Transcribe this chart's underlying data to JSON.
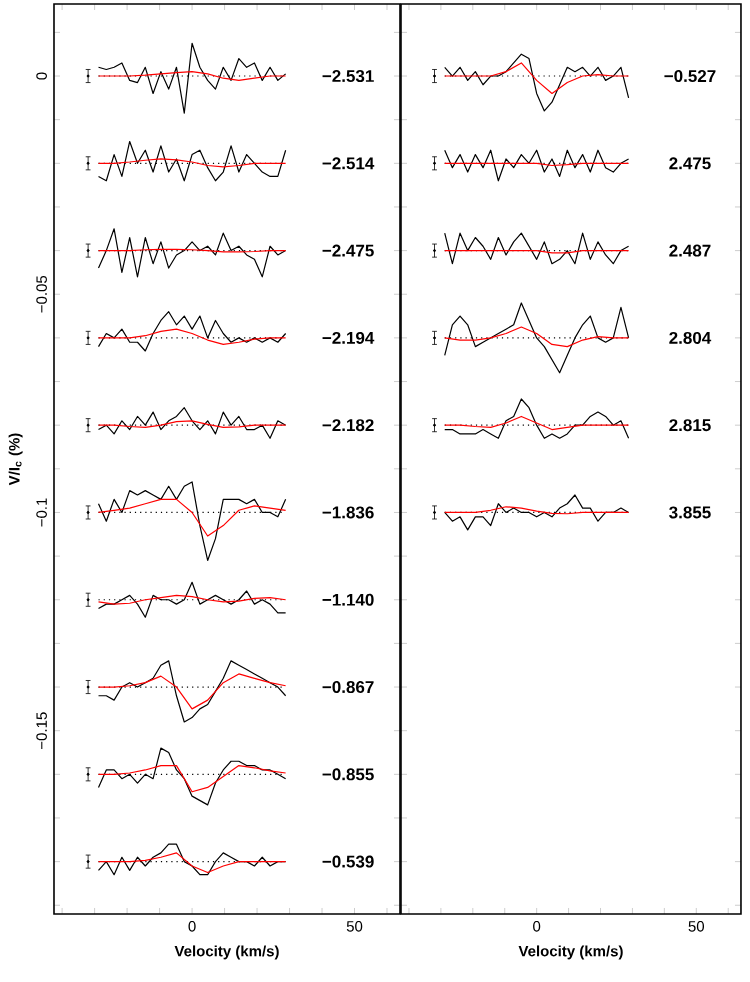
{
  "chart_data": [
    {
      "type": "line",
      "xlabel": "Velocity (km/s)",
      "ylabel": "V/I$_{c}$ (%)",
      "xlim": [
        -42.5,
        64
      ],
      "ylim": [
        -0.192,
        0.0165
      ],
      "xticks": [
        {
          "value": -40,
          "label": null
        },
        {
          "value": -30,
          "label": null
        },
        {
          "value": -20,
          "label": null
        },
        {
          "value": -10,
          "label": null
        },
        0,
        {
          "value": 10,
          "label": null
        },
        {
          "value": 20,
          "label": null
        },
        {
          "value": 30,
          "label": null
        },
        {
          "value": 40,
          "label": null
        },
        50,
        {
          "value": 60,
          "label": null
        }
      ],
      "yticks": [
        {
          "value": 0.01,
          "label": null
        },
        0,
        {
          "value": -0.01,
          "label": null
        },
        {
          "value": -0.02,
          "label": null
        },
        {
          "value": -0.03,
          "label": null
        },
        {
          "value": -0.04,
          "label": null
        },
        {
          "value": -0.05,
          "label": "−0.05"
        },
        {
          "value": -0.06,
          "label": null
        },
        {
          "value": -0.07,
          "label": null
        },
        {
          "value": -0.08,
          "label": null
        },
        {
          "value": -0.09,
          "label": null
        },
        {
          "value": -0.1,
          "label": "−0.1"
        },
        {
          "value": -0.11,
          "label": null
        },
        {
          "value": -0.12,
          "label": null
        },
        {
          "value": -0.13,
          "label": null
        },
        {
          "value": -0.14,
          "label": null
        },
        {
          "value": -0.15,
          "label": "−0.15"
        },
        {
          "value": -0.16,
          "label": null
        },
        {
          "value": -0.17,
          "label": null
        },
        {
          "value": -0.18,
          "label": null
        },
        {
          "value": -0.19,
          "label": null
        }
      ],
      "legend": false,
      "grid": false,
      "marker": "none",
      "line_style": "solid",
      "x": [
        -28.8,
        -26.4,
        -24,
        -21.6,
        -19.2,
        -16.8,
        -14.4,
        -12,
        -9.6,
        -7.2,
        -4.8,
        -2.4,
        0,
        2.4,
        4.8,
        7.2,
        9.6,
        12,
        14.4,
        16.8,
        19.2,
        21.6,
        24,
        26.4,
        28.8
      ],
      "series": [
        {
          "color": "#000000",
          "values": [
            0.002,
            0.0015,
            0.002,
            0.003,
            -0.001,
            -0.0015,
            0.002,
            -0.004,
            0.001,
            -0.003,
            0.002,
            -0.0085,
            0.0075,
            0.002,
            -0.001,
            -0.003,
            0.002,
            -0.001,
            0.004,
            0.002,
            0.003,
            -0.001,
            0.002,
            -0.001,
            0.0005
          ]
        },
        {
          "color": "#ff0000",
          "x": [
            -28.8,
            -24,
            -19.2,
            -14.4,
            -9.6,
            -4.8,
            0,
            4.8,
            9.6,
            14.4,
            19.2,
            24,
            28.8
          ],
          "values": [
            0,
            0,
            0,
            0.0002,
            0.0005,
            0.0008,
            0.001,
            0.0005,
            -0.0005,
            -0.001,
            -0.0005,
            0,
            0
          ]
        },
        {
          "color": "#000000",
          "values": [
            -0.023,
            -0.024,
            -0.018,
            -0.023,
            -0.015,
            -0.02,
            -0.017,
            -0.022,
            -0.016,
            -0.022,
            -0.019,
            -0.024,
            -0.018,
            -0.017,
            -0.021,
            -0.024,
            -0.022,
            -0.016,
            -0.022,
            -0.018,
            -0.02,
            -0.022,
            -0.023,
            -0.023,
            -0.017
          ]
        },
        {
          "color": "#ff0000",
          "x": [
            -28.8,
            -24,
            -19.2,
            -14.4,
            -9.6,
            -4.8,
            0,
            4.8,
            9.6,
            14.4,
            19.2,
            24,
            28.8
          ],
          "values": [
            -0.02,
            -0.02,
            -0.0197,
            -0.0193,
            -0.019,
            -0.0192,
            -0.0197,
            -0.0205,
            -0.0208,
            -0.0205,
            -0.02,
            -0.02,
            -0.02
          ]
        },
        {
          "color": "#000000",
          "values": [
            -0.044,
            -0.04,
            -0.035,
            -0.045,
            -0.037,
            -0.046,
            -0.037,
            -0.043,
            -0.038,
            -0.044,
            -0.041,
            -0.04,
            -0.038,
            -0.04,
            -0.039,
            -0.041,
            -0.036,
            -0.04,
            -0.039,
            -0.041,
            -0.042,
            -0.046,
            -0.039,
            -0.041,
            -0.04
          ]
        },
        {
          "color": "#ff0000",
          "x": [
            -28.8,
            -24,
            -19.2,
            -14.4,
            -9.6,
            -4.8,
            0,
            4.8,
            9.6,
            14.4,
            19.2,
            24,
            28.8
          ],
          "values": [
            -0.04,
            -0.04,
            -0.04,
            -0.0398,
            -0.0397,
            -0.0397,
            -0.0398,
            -0.04,
            -0.0403,
            -0.0403,
            -0.0402,
            -0.04,
            -0.04
          ]
        },
        {
          "color": "#000000",
          "values": [
            -0.062,
            -0.059,
            -0.06,
            -0.058,
            -0.061,
            -0.061,
            -0.063,
            -0.059,
            -0.056,
            -0.054,
            -0.057,
            -0.055,
            -0.058,
            -0.055,
            -0.06,
            -0.056,
            -0.059,
            -0.061,
            -0.06,
            -0.061,
            -0.06,
            -0.061,
            -0.06,
            -0.061,
            -0.059
          ]
        },
        {
          "color": "#ff0000",
          "x": [
            -28.8,
            -24,
            -19.2,
            -14.4,
            -9.6,
            -4.8,
            0,
            4.8,
            9.6,
            14.4,
            19.2,
            24,
            28.8
          ],
          "values": [
            -0.06,
            -0.06,
            -0.06,
            -0.0595,
            -0.0585,
            -0.058,
            -0.059,
            -0.0605,
            -0.0615,
            -0.061,
            -0.0603,
            -0.06,
            -0.06
          ]
        },
        {
          "color": "#000000",
          "values": [
            -0.081,
            -0.08,
            -0.082,
            -0.079,
            -0.081,
            -0.078,
            -0.08,
            -0.077,
            -0.081,
            -0.079,
            -0.078,
            -0.076,
            -0.079,
            -0.081,
            -0.079,
            -0.082,
            -0.077,
            -0.08,
            -0.078,
            -0.081,
            -0.081,
            -0.08,
            -0.083,
            -0.079,
            -0.08
          ]
        },
        {
          "color": "#ff0000",
          "x": [
            -28.8,
            -24,
            -19.2,
            -14.4,
            -9.6,
            -4.8,
            0,
            4.8,
            9.6,
            14.4,
            19.2,
            24,
            28.8
          ],
          "values": [
            -0.08,
            -0.08,
            -0.0803,
            -0.0805,
            -0.08,
            -0.0792,
            -0.079,
            -0.0798,
            -0.0805,
            -0.0804,
            -0.08,
            -0.08,
            -0.08
          ]
        },
        {
          "color": "#000000",
          "values": [
            -0.098,
            -0.102,
            -0.097,
            -0.1,
            -0.095,
            -0.096,
            -0.095,
            -0.096,
            -0.097,
            -0.094,
            -0.097,
            -0.094,
            -0.093,
            -0.103,
            -0.111,
            -0.106,
            -0.097,
            -0.097,
            -0.097,
            -0.098,
            -0.097,
            -0.1,
            -0.1,
            -0.101,
            -0.097
          ]
        },
        {
          "color": "#ff0000",
          "x": [
            -28.8,
            -24,
            -19.2,
            -14.4,
            -9.6,
            -4.8,
            0,
            4.8,
            9.6,
            14.4,
            19.2,
            24,
            28.8
          ],
          "values": [
            -0.1,
            -0.0995,
            -0.099,
            -0.098,
            -0.097,
            -0.097,
            -0.1,
            -0.1054,
            -0.103,
            -0.0995,
            -0.0985,
            -0.099,
            -0.0995
          ]
        },
        {
          "color": "#000000",
          "values": [
            -0.122,
            -0.121,
            -0.121,
            -0.12,
            -0.119,
            -0.121,
            -0.124,
            -0.119,
            -0.12,
            -0.12,
            -0.121,
            -0.12,
            -0.116,
            -0.121,
            -0.12,
            -0.119,
            -0.12,
            -0.121,
            -0.12,
            -0.118,
            -0.121,
            -0.12,
            -0.121,
            -0.123,
            -0.123
          ]
        },
        {
          "color": "#ff0000",
          "x": [
            -28.8,
            -24,
            -19.2,
            -14.4,
            -9.6,
            -4.8,
            0,
            4.8,
            9.6,
            14.4,
            19.2,
            24,
            28.8
          ],
          "values": [
            -0.1205,
            -0.121,
            -0.1208,
            -0.12,
            -0.1195,
            -0.119,
            -0.1193,
            -0.12,
            -0.1205,
            -0.1203,
            -0.1197,
            -0.1195,
            -0.12
          ]
        },
        {
          "color": "#000000",
          "values": [
            -0.142,
            -0.142,
            -0.143,
            -0.14,
            -0.139,
            -0.14,
            -0.139,
            -0.138,
            -0.135,
            -0.134,
            -0.142,
            -0.148,
            -0.147,
            -0.145,
            -0.144,
            -0.141,
            -0.138,
            -0.134,
            -0.135,
            -0.136,
            -0.137,
            -0.138,
            -0.139,
            -0.14,
            -0.142
          ]
        },
        {
          "color": "#ff0000",
          "x": [
            -28.8,
            -24,
            -19.2,
            -14.4,
            -9.6,
            -4.8,
            0,
            4.8,
            9.6,
            14.4,
            19.2,
            24,
            28.8
          ],
          "values": [
            -0.14,
            -0.14,
            -0.1397,
            -0.139,
            -0.1375,
            -0.14,
            -0.145,
            -0.143,
            -0.139,
            -0.137,
            -0.138,
            -0.139,
            -0.1397
          ]
        },
        {
          "color": "#000000",
          "values": [
            -0.163,
            -0.159,
            -0.159,
            -0.161,
            -0.16,
            -0.162,
            -0.16,
            -0.161,
            -0.154,
            -0.155,
            -0.159,
            -0.161,
            -0.165,
            -0.166,
            -0.167,
            -0.162,
            -0.159,
            -0.157,
            -0.157,
            -0.158,
            -0.158,
            -0.159,
            -0.159,
            -0.16,
            -0.161
          ]
        },
        {
          "color": "#ff0000",
          "x": [
            -28.8,
            -24,
            -19.2,
            -14.4,
            -9.6,
            -4.8,
            0,
            4.8,
            9.6,
            14.4,
            19.2,
            24,
            28.8
          ],
          "values": [
            -0.16,
            -0.16,
            -0.1597,
            -0.159,
            -0.158,
            -0.158,
            -0.164,
            -0.163,
            -0.1605,
            -0.158,
            -0.1585,
            -0.1592,
            -0.1597
          ]
        },
        {
          "color": "#000000",
          "values": [
            -0.182,
            -0.18,
            -0.183,
            -0.179,
            -0.182,
            -0.179,
            -0.181,
            -0.179,
            -0.178,
            -0.176,
            -0.176,
            -0.18,
            -0.181,
            -0.183,
            -0.183,
            -0.18,
            -0.178,
            -0.179,
            -0.18,
            -0.18,
            -0.181,
            -0.179,
            -0.181,
            -0.18,
            -0.18
          ]
        },
        {
          "color": "#ff0000",
          "x": [
            -28.8,
            -24,
            -19.2,
            -14.4,
            -9.6,
            -4.8,
            0,
            4.8,
            9.6,
            14.4,
            19.2,
            24,
            28.8
          ],
          "values": [
            -0.18,
            -0.18,
            -0.18,
            -0.1797,
            -0.179,
            -0.178,
            -0.181,
            -0.1825,
            -0.181,
            -0.18,
            -0.18,
            -0.18,
            -0.18
          ]
        },
        {
          "type": "scatter",
          "color": "#000000",
          "x": [
            -32,
            -32,
            -32,
            -32,
            -32,
            -32,
            -32,
            -32,
            -32,
            -32
          ],
          "values": [
            0,
            -0.02,
            -0.04,
            -0.06,
            -0.08,
            -0.1,
            -0.12,
            -0.14,
            -0.16,
            -0.18
          ],
          "errors": [
            0.0015,
            0.0015,
            0.0015,
            0.0015,
            0.0015,
            0.0015,
            0.0015,
            0.0015,
            0.0015,
            0.0015
          ]
        }
      ],
      "ref_lines": [
        {
          "axis": "y",
          "value": 0,
          "line_style": "dotted",
          "color": "#000000"
        },
        {
          "axis": "y",
          "value": -0.02,
          "line_style": "dotted",
          "color": "#000000"
        },
        {
          "axis": "y",
          "value": -0.04,
          "line_style": "dotted",
          "color": "#000000"
        },
        {
          "axis": "y",
          "value": -0.06,
          "line_style": "dotted",
          "color": "#000000"
        },
        {
          "axis": "y",
          "value": -0.08,
          "line_style": "dotted",
          "color": "#000000"
        },
        {
          "axis": "y",
          "value": -0.1,
          "line_style": "dotted",
          "color": "#000000"
        },
        {
          "axis": "y",
          "value": -0.12,
          "line_style": "dotted",
          "color": "#000000"
        },
        {
          "axis": "y",
          "value": -0.14,
          "line_style": "dotted",
          "color": "#000000"
        },
        {
          "axis": "y",
          "value": -0.16,
          "line_style": "dotted",
          "color": "#000000"
        },
        {
          "axis": "y",
          "value": -0.18,
          "line_style": "dotted",
          "color": "#000000"
        }
      ],
      "annotations": [
        "−2.531",
        "−2.514",
        "−2.475",
        "−2.194",
        "−2.182",
        "−1.836",
        "−1.140",
        "−0.867",
        "−0.855",
        "−0.539"
      ]
    },
    {
      "type": "line",
      "xlabel": "Velocity (km/s)",
      "xlim": [
        -42.5,
        64
      ],
      "ylim": [
        -0.192,
        0.0165
      ],
      "tick_labels": "x",
      "xticks": [
        {
          "value": -40,
          "label": null
        },
        {
          "value": -30,
          "label": null
        },
        {
          "value": -20,
          "label": null
        },
        {
          "value": -10,
          "label": null
        },
        0,
        {
          "value": 10,
          "label": null
        },
        {
          "value": 20,
          "label": null
        },
        {
          "value": 30,
          "label": null
        },
        {
          "value": 40,
          "label": null
        },
        50,
        {
          "value": 60,
          "label": null
        }
      ],
      "yticks": [
        {
          "value": 0.01,
          "label": null
        },
        {
          "value": 0,
          "label": null
        },
        {
          "value": -0.01,
          "label": null
        },
        {
          "value": -0.02,
          "label": null
        },
        {
          "value": -0.03,
          "label": null
        },
        {
          "value": -0.04,
          "label": null
        },
        {
          "value": -0.05,
          "label": null
        },
        {
          "value": -0.06,
          "label": null
        },
        {
          "value": -0.07,
          "label": null
        },
        {
          "value": -0.08,
          "label": null
        },
        {
          "value": -0.09,
          "label": null
        },
        {
          "value": -0.1,
          "label": null
        },
        {
          "value": -0.11,
          "label": null
        },
        {
          "value": -0.12,
          "label": null
        },
        {
          "value": -0.13,
          "label": null
        },
        {
          "value": -0.14,
          "label": null
        },
        {
          "value": -0.15,
          "label": null
        },
        {
          "value": -0.16,
          "label": null
        },
        {
          "value": -0.17,
          "label": null
        },
        {
          "value": -0.18,
          "label": null
        },
        {
          "value": -0.19,
          "label": null
        }
      ],
      "legend": false,
      "grid": false,
      "marker": "none",
      "line_style": "solid",
      "x": [
        -28.8,
        -26.4,
        -24,
        -21.6,
        -19.2,
        -16.8,
        -14.4,
        -12,
        -9.6,
        -7.2,
        -4.8,
        -2.4,
        0,
        2.4,
        4.8,
        7.2,
        9.6,
        12,
        14.4,
        16.8,
        19.2,
        21.6,
        24,
        26.4,
        28.8
      ],
      "series": [
        {
          "color": "#000000",
          "values": [
            0.002,
            0,
            0.002,
            -0.001,
            0.001,
            -0.002,
            0,
            0,
            0.001,
            0.003,
            0.005,
            0.004,
            -0.004,
            -0.008,
            -0.006,
            -0.002,
            0.002,
            0.001,
            0.002,
            0,
            0.002,
            -0.001,
            0,
            0.002,
            -0.005
          ]
        },
        {
          "color": "#ff0000",
          "x": [
            -28.8,
            -24,
            -19.2,
            -14.4,
            -9.6,
            -4.8,
            0,
            4.8,
            9.6,
            14.4,
            19.2,
            24,
            28.8
          ],
          "values": [
            0,
            0,
            0,
            0,
            0.001,
            0.003,
            -0.001,
            -0.004,
            -0.0015,
            0,
            0.0003,
            0,
            0
          ]
        },
        {
          "color": "#000000",
          "values": [
            -0.017,
            -0.021,
            -0.018,
            -0.022,
            -0.018,
            -0.021,
            -0.017,
            -0.024,
            -0.019,
            -0.021,
            -0.018,
            -0.02,
            -0.017,
            -0.022,
            -0.019,
            -0.023,
            -0.017,
            -0.021,
            -0.018,
            -0.022,
            -0.017,
            -0.021,
            -0.022,
            -0.02,
            -0.019
          ]
        },
        {
          "color": "#ff0000",
          "x": [
            -28.8,
            -24,
            -19.2,
            -14.4,
            -9.6,
            -4.8,
            0,
            4.8,
            9.6,
            14.4,
            19.2,
            24,
            28.8
          ],
          "values": [
            -0.02,
            -0.02,
            -0.02,
            -0.02,
            -0.02,
            -0.02,
            -0.02,
            -0.0205,
            -0.0203,
            -0.02,
            -0.02,
            -0.02,
            -0.02
          ]
        },
        {
          "color": "#000000",
          "values": [
            -0.036,
            -0.043,
            -0.036,
            -0.04,
            -0.037,
            -0.039,
            -0.042,
            -0.037,
            -0.041,
            -0.038,
            -0.036,
            -0.039,
            -0.042,
            -0.038,
            -0.043,
            -0.042,
            -0.04,
            -0.043,
            -0.036,
            -0.042,
            -0.038,
            -0.041,
            -0.043,
            -0.04,
            -0.039
          ]
        },
        {
          "color": "#ff0000",
          "x": [
            -28.8,
            -24,
            -19.2,
            -14.4,
            -9.6,
            -4.8,
            0,
            4.8,
            9.6,
            14.4,
            19.2,
            24,
            28.8
          ],
          "values": [
            -0.04,
            -0.04,
            -0.04,
            -0.04,
            -0.04,
            -0.04,
            -0.04,
            -0.0405,
            -0.0405,
            -0.04,
            -0.04,
            -0.04,
            -0.04
          ]
        },
        {
          "color": "#000000",
          "values": [
            -0.064,
            -0.057,
            -0.055,
            -0.057,
            -0.062,
            -0.061,
            -0.06,
            -0.059,
            -0.058,
            -0.057,
            -0.052,
            -0.056,
            -0.06,
            -0.062,
            -0.065,
            -0.068,
            -0.064,
            -0.06,
            -0.057,
            -0.055,
            -0.06,
            -0.061,
            -0.06,
            -0.053,
            -0.06
          ]
        },
        {
          "color": "#ff0000",
          "x": [
            -28.8,
            -24,
            -19.2,
            -14.4,
            -9.6,
            -4.8,
            0,
            4.8,
            9.6,
            14.4,
            19.2,
            24,
            28.8
          ],
          "values": [
            -0.06,
            -0.0605,
            -0.0605,
            -0.06,
            -0.059,
            -0.0575,
            -0.059,
            -0.0615,
            -0.062,
            -0.0605,
            -0.0597,
            -0.06,
            -0.06
          ]
        },
        {
          "color": "#000000",
          "values": [
            -0.081,
            -0.081,
            -0.082,
            -0.082,
            -0.082,
            -0.081,
            -0.082,
            -0.083,
            -0.079,
            -0.078,
            -0.074,
            -0.076,
            -0.08,
            -0.083,
            -0.082,
            -0.083,
            -0.082,
            -0.08,
            -0.08,
            -0.078,
            -0.077,
            -0.078,
            -0.08,
            -0.079,
            -0.083
          ]
        },
        {
          "color": "#ff0000",
          "x": [
            -28.8,
            -24,
            -19.2,
            -14.4,
            -9.6,
            -4.8,
            0,
            4.8,
            9.6,
            14.4,
            19.2,
            24,
            28.8
          ],
          "values": [
            -0.08,
            -0.08,
            -0.0803,
            -0.0805,
            -0.0795,
            -0.078,
            -0.0795,
            -0.081,
            -0.0805,
            -0.08,
            -0.08,
            -0.08,
            -0.08
          ]
        },
        {
          "color": "#000000",
          "values": [
            -0.1,
            -0.102,
            -0.101,
            -0.104,
            -0.101,
            -0.101,
            -0.103,
            -0.098,
            -0.1,
            -0.099,
            -0.1,
            -0.1,
            -0.101,
            -0.1,
            -0.101,
            -0.099,
            -0.098,
            -0.096,
            -0.099,
            -0.099,
            -0.102,
            -0.1,
            -0.1,
            -0.099,
            -0.1
          ]
        },
        {
          "color": "#ff0000",
          "x": [
            -28.8,
            -24,
            -19.2,
            -14.4,
            -9.6,
            -4.8,
            0,
            4.8,
            9.6,
            14.4,
            19.2,
            24,
            28.8
          ],
          "values": [
            -0.1,
            -0.1,
            -0.1,
            -0.0995,
            -0.0987,
            -0.099,
            -0.0997,
            -0.1002,
            -0.1003,
            -0.1,
            -0.1,
            -0.1,
            -0.1
          ]
        },
        {
          "type": "scatter",
          "color": "#000000",
          "x": [
            -32,
            -32,
            -32,
            -32,
            -32,
            -32
          ],
          "values": [
            0,
            -0.02,
            -0.04,
            -0.06,
            -0.08,
            -0.1
          ],
          "errors": [
            0.0015,
            0.0015,
            0.0015,
            0.0015,
            0.0015,
            0.0015
          ]
        }
      ],
      "ref_lines": [
        {
          "axis": "y",
          "value": 0,
          "line_style": "dotted",
          "color": "#000000"
        },
        {
          "axis": "y",
          "value": -0.02,
          "line_style": "dotted",
          "color": "#000000"
        },
        {
          "axis": "y",
          "value": -0.04,
          "line_style": "dotted",
          "color": "#000000"
        },
        {
          "axis": "y",
          "value": -0.06,
          "line_style": "dotted",
          "color": "#000000"
        },
        {
          "axis": "y",
          "value": -0.08,
          "line_style": "dotted",
          "color": "#000000"
        },
        {
          "axis": "y",
          "value": -0.1,
          "line_style": "dotted",
          "color": "#000000"
        }
      ],
      "annotations": [
        "−0.527",
        "2.475",
        "2.487",
        "2.804",
        "2.815",
        "3.855"
      ]
    }
  ]
}
